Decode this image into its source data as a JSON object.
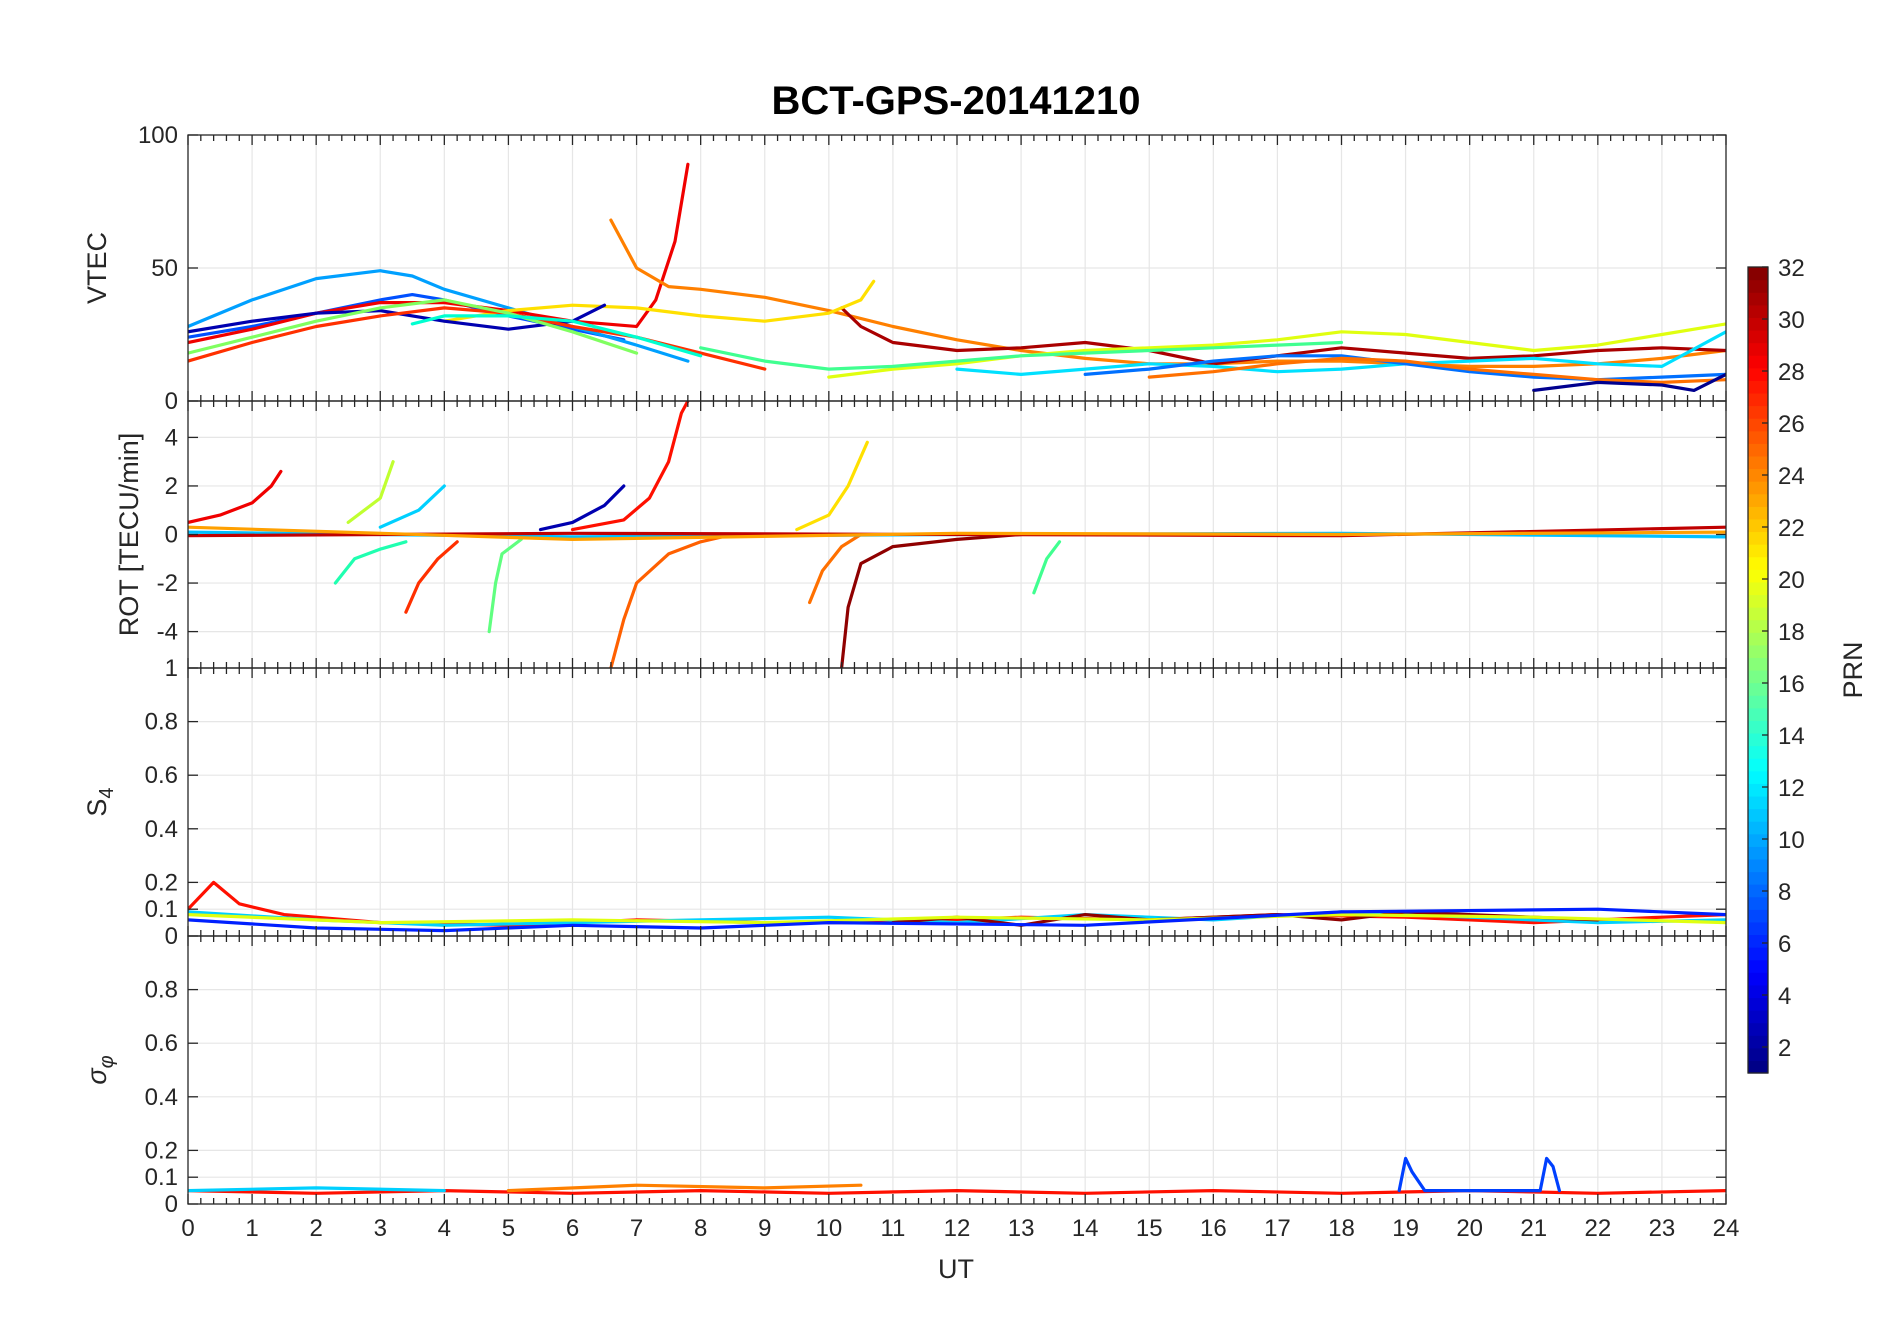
{
  "chart_data": {
    "type": "line",
    "title": "BCT-GPS-20141210",
    "xlabel": "UT",
    "xlim": [
      0,
      24
    ],
    "xticks": [
      "0",
      "1",
      "2",
      "3",
      "4",
      "5",
      "6",
      "7",
      "8",
      "9",
      "10",
      "11",
      "12",
      "13",
      "14",
      "15",
      "16",
      "17",
      "18",
      "19",
      "20",
      "21",
      "22",
      "23",
      "24"
    ],
    "colorbar": {
      "label": "PRN",
      "range": [
        1,
        32
      ],
      "ticks": [
        "2",
        "4",
        "6",
        "8",
        "10",
        "12",
        "14",
        "16",
        "18",
        "20",
        "22",
        "24",
        "26",
        "28",
        "30",
        "32"
      ],
      "colormap": "jet"
    },
    "panels": [
      {
        "id": "vtec",
        "ylabel": "VTEC",
        "ylim": [
          0,
          100
        ],
        "yticks": [
          "0",
          "50",
          "100"
        ],
        "series": [
          {
            "prn": 5,
            "color": "#0050ff",
            "x": [
              0,
              1,
              2,
              3,
              3.5,
              4,
              5,
              6,
              6.8
            ],
            "y": [
              24,
              28,
              33,
              38,
              40,
              38,
              32,
              27,
              23
            ]
          },
          {
            "prn": 9,
            "color": "#00a0ff",
            "x": [
              0,
              1,
              2,
              3,
              3.5,
              4,
              5,
              6,
              7,
              7.8
            ],
            "y": [
              28,
              38,
              46,
              49,
              47,
              42,
              35,
              28,
              21,
              15
            ]
          },
          {
            "prn": 29,
            "color": "#f00000",
            "x": [
              0,
              1,
              2,
              3,
              4,
              5,
              6,
              7,
              7.3,
              7.6,
              7.8
            ],
            "y": [
              22,
              27,
              33,
              37,
              37,
              34,
              30,
              28,
              38,
              60,
              89
            ]
          },
          {
            "prn": 23,
            "color": "#ff8000",
            "x": [
              6.6,
              7,
              7.5,
              8,
              9,
              10,
              11,
              12,
              13,
              14,
              15,
              16,
              17,
              18,
              19,
              20,
              21,
              22,
              23,
              24
            ],
            "y": [
              68,
              50,
              43,
              42,
              39,
              34,
              28,
              23,
              19,
              16,
              14,
              14,
              15,
              15,
              14,
              13,
              13,
              14,
              16,
              19
            ]
          },
          {
            "prn": 31,
            "color": "#aa0000",
            "x": [
              10.2,
              10.5,
              11,
              12,
              13,
              14,
              15,
              16,
              17,
              18,
              19,
              20,
              21,
              22,
              23,
              24
            ],
            "y": [
              35,
              28,
              22,
              19,
              20,
              22,
              19,
              14,
              17,
              20,
              18,
              16,
              17,
              19,
              20,
              19
            ]
          },
          {
            "prn": 19,
            "color": "#e0ff10",
            "x": [
              10,
              11,
              12,
              13,
              14,
              15,
              16,
              17,
              18,
              19,
              20,
              21,
              22,
              23,
              24
            ],
            "y": [
              9,
              12,
              14,
              17,
              19,
              20,
              21,
              23,
              26,
              25,
              22,
              19,
              21,
              25,
              29
            ]
          },
          {
            "prn": 15,
            "color": "#40ff90",
            "x": [
              8,
              9,
              10,
              11,
              12,
              13,
              14,
              15,
              16,
              17,
              18
            ],
            "y": [
              20,
              15,
              12,
              13,
              15,
              17,
              18,
              19,
              20,
              21,
              22
            ]
          },
          {
            "prn": 11,
            "color": "#00e0ff",
            "x": [
              12,
              13,
              14,
              15,
              16,
              17,
              18,
              19,
              20,
              21,
              22,
              23,
              24
            ],
            "y": [
              12,
              10,
              12,
              14,
              13,
              11,
              12,
              14,
              15,
              16,
              14,
              13,
              26
            ]
          },
          {
            "prn": 20,
            "color": "#ffe000",
            "x": [
              4,
              5,
              6,
              7,
              8,
              9,
              10,
              10.5,
              10.7
            ],
            "y": [
              30,
              34,
              36,
              35,
              32,
              30,
              33,
              38,
              45
            ]
          },
          {
            "prn": 7,
            "color": "#0070ff",
            "x": [
              14,
              15,
              16,
              17,
              18,
              19,
              20,
              21,
              22,
              23,
              24
            ],
            "y": [
              10,
              12,
              15,
              17,
              17,
              14,
              11,
              9,
              8,
              9,
              10
            ]
          },
          {
            "prn": 2,
            "color": "#0000b0",
            "x": [
              0,
              1,
              2,
              3,
              4,
              5,
              6,
              6.5
            ],
            "y": [
              26,
              30,
              33,
              34,
              30,
              27,
              30,
              36
            ]
          },
          {
            "prn": 26,
            "color": "#ff3000",
            "x": [
              0,
              1,
              2,
              3,
              4,
              5,
              6,
              7,
              8,
              9
            ],
            "y": [
              15,
              22,
              28,
              32,
              35,
              33,
              28,
              24,
              18,
              12
            ]
          },
          {
            "prn": 17,
            "color": "#80ff60",
            "x": [
              0,
              1,
              2,
              3,
              4,
              5,
              6,
              7
            ],
            "y": [
              18,
              24,
              30,
              35,
              38,
              33,
              26,
              18
            ]
          },
          {
            "prn": 24,
            "color": "#ff7000",
            "x": [
              15,
              16,
              17,
              18,
              19,
              20,
              21,
              22,
              23,
              24
            ],
            "y": [
              9,
              11,
              14,
              16,
              15,
              12,
              10,
              8,
              7,
              8
            ]
          },
          {
            "prn": 13,
            "color": "#00ffd0",
            "x": [
              3.5,
              4,
              5,
              6,
              7,
              8
            ],
            "y": [
              29,
              32,
              32,
              30,
              24,
              17
            ]
          },
          {
            "prn": 1,
            "color": "#00008f",
            "x": [
              21,
              22,
              23,
              23.5,
              24
            ],
            "y": [
              4,
              7,
              6,
              4,
              10
            ]
          }
        ]
      },
      {
        "id": "rot",
        "ylabel": "ROT [TECU/min]",
        "ylim": [
          -5.5,
          5.5
        ],
        "yticks": [
          "-4",
          "-2",
          "0",
          "2",
          "4"
        ],
        "series": [
          {
            "prn": 29,
            "color": "#f00000",
            "x": [
              0,
              0.5,
              1,
              1.3,
              1.45
            ],
            "y": [
              0.5,
              0.8,
              1.3,
              2,
              2.6
            ]
          },
          {
            "prn": 28,
            "color": "#ff1000",
            "x": [
              6,
              6.8,
              7.2,
              7.5,
              7.7,
              7.8
            ],
            "y": [
              0.2,
              0.6,
              1.5,
              3,
              5,
              5.5
            ]
          },
          {
            "prn": 2,
            "color": "#0000b0",
            "x": [
              5.5,
              6,
              6.5,
              6.8
            ],
            "y": [
              0.2,
              0.5,
              1.2,
              2
            ]
          },
          {
            "prn": 18,
            "color": "#c0ff30",
            "x": [
              2.5,
              3,
              3.2
            ],
            "y": [
              0.5,
              1.5,
              3
            ]
          },
          {
            "prn": 12,
            "color": "#00d0ff",
            "x": [
              3,
              3.6,
              4
            ],
            "y": [
              0.3,
              1,
              2
            ]
          },
          {
            "prn": 20,
            "color": "#ffe000",
            "x": [
              9.5,
              10,
              10.3,
              10.6
            ],
            "y": [
              0.2,
              0.8,
              2,
              3.8
            ]
          },
          {
            "prn": 25,
            "color": "#ff6000",
            "x": [
              6.6,
              6.8,
              7,
              7.5,
              8,
              8.5
            ],
            "y": [
              -5.5,
              -3.5,
              -2,
              -0.8,
              -0.3,
              0
            ]
          },
          {
            "prn": 31,
            "color": "#8f0000",
            "x": [
              10.2,
              10.3,
              10.5,
              11,
              12,
              13
            ],
            "y": [
              -5.5,
              -3,
              -1.2,
              -0.5,
              -0.2,
              0
            ]
          },
          {
            "prn": 24,
            "color": "#ff7000",
            "x": [
              9.7,
              9.9,
              10.2,
              10.5
            ],
            "y": [
              -2.8,
              -1.5,
              -0.5,
              0
            ]
          },
          {
            "prn": 26,
            "color": "#ff3000",
            "x": [
              3.4,
              3.6,
              3.9,
              4.2
            ],
            "y": [
              -3.2,
              -2,
              -1,
              -0.3
            ]
          },
          {
            "prn": 16,
            "color": "#60ff80",
            "x": [
              4.7,
              4.8,
              4.9,
              5.2
            ],
            "y": [
              -4,
              -2,
              -0.8,
              -0.2
            ]
          },
          {
            "prn": 14,
            "color": "#20ffb0",
            "x": [
              2.3,
              2.6,
              3,
              3.4
            ],
            "y": [
              -2,
              -1,
              -0.6,
              -0.3
            ]
          },
          {
            "prn": 15,
            "color": "#40ff90",
            "x": [
              13.2,
              13.4,
              13.6
            ],
            "y": [
              -2.4,
              -1,
              -0.3
            ]
          },
          {
            "prn": 10,
            "color": "#00c0ff",
            "x": [
              0,
              6,
              12,
              18,
              24
            ],
            "y": [
              0.1,
              -0.1,
              0,
              0.05,
              -0.1
            ]
          },
          {
            "prn": 30,
            "color": "#c00000",
            "x": [
              0,
              6,
              12,
              18,
              24
            ],
            "y": [
              -0.05,
              0.05,
              0,
              -0.05,
              0.3
            ]
          },
          {
            "prn": 22,
            "color": "#ffa000",
            "x": [
              0,
              6,
              12,
              18,
              24
            ],
            "y": [
              0.3,
              -0.2,
              0.05,
              0,
              0.1
            ]
          }
        ]
      },
      {
        "id": "s4",
        "ylabel": "S4",
        "ylim": [
          0,
          1
        ],
        "yticks": [
          "0",
          "0.1",
          "0.2",
          "0.4",
          "0.6",
          "0.8",
          "1"
        ],
        "series": [
          {
            "prn": 28,
            "color": "#ff1000",
            "x": [
              0,
              0.4,
              0.8,
              1.5,
              3,
              5,
              7,
              9,
              11,
              13,
              15,
              17,
              19,
              21,
              23,
              24
            ],
            "y": [
              0.1,
              0.2,
              0.12,
              0.08,
              0.05,
              0.04,
              0.06,
              0.05,
              0.05,
              0.07,
              0.06,
              0.08,
              0.07,
              0.05,
              0.07,
              0.08
            ]
          },
          {
            "prn": 12,
            "color": "#00d0ff",
            "x": [
              0,
              2,
              4,
              6,
              8,
              10,
              12,
              14,
              16,
              18,
              20,
              22,
              24
            ],
            "y": [
              0.09,
              0.06,
              0.04,
              0.05,
              0.06,
              0.07,
              0.05,
              0.08,
              0.06,
              0.09,
              0.07,
              0.05,
              0.06
            ]
          },
          {
            "prn": 31,
            "color": "#8f0000",
            "x": [
              11,
              12,
              13,
              14,
              15,
              16,
              17,
              18,
              19,
              20,
              21,
              22
            ],
            "y": [
              0.05,
              0.07,
              0.04,
              0.08,
              0.06,
              0.07,
              0.08,
              0.06,
              0.09,
              0.08,
              0.07,
              0.06
            ]
          },
          {
            "prn": 19,
            "color": "#e0ff10",
            "x": [
              0,
              3,
              6,
              9,
              12,
              15,
              18,
              21,
              24
            ],
            "y": [
              0.08,
              0.05,
              0.06,
              0.05,
              0.07,
              0.06,
              0.08,
              0.07,
              0.05
            ]
          },
          {
            "prn": 4,
            "color": "#0020ff",
            "x": [
              0,
              2,
              4,
              6,
              8,
              10,
              14,
              18,
              22,
              24
            ],
            "y": [
              0.06,
              0.03,
              0.02,
              0.04,
              0.03,
              0.05,
              0.04,
              0.09,
              0.1,
              0.08
            ]
          }
        ]
      },
      {
        "id": "sigma_phi",
        "ylabel": "σφ",
        "ylim": [
          0,
          1
        ],
        "yticks": [
          "0",
          "0.1",
          "0.2",
          "0.4",
          "0.6",
          "0.8"
        ],
        "series": [
          {
            "prn": 28,
            "color": "#ff1000",
            "x": [
              0,
              2,
              4,
              6,
              8,
              10,
              12,
              14,
              16,
              18,
              20,
              22,
              24
            ],
            "y": [
              0.05,
              0.04,
              0.05,
              0.04,
              0.05,
              0.04,
              0.05,
              0.04,
              0.05,
              0.04,
              0.05,
              0.04,
              0.05
            ]
          },
          {
            "prn": 23,
            "color": "#ff8000",
            "x": [
              5,
              7,
              9,
              10.5
            ],
            "y": [
              0.05,
              0.07,
              0.06,
              0.07
            ]
          },
          {
            "prn": 12,
            "color": "#00d0ff",
            "x": [
              0,
              2,
              4
            ],
            "y": [
              0.05,
              0.06,
              0.05
            ]
          },
          {
            "prn": 5,
            "color": "#0040ff",
            "x": [
              18.9,
              19,
              19.1,
              19.3,
              21.1,
              21.2,
              21.3,
              21.4
            ],
            "y": [
              0.05,
              0.17,
              0.12,
              0.05,
              0.05,
              0.17,
              0.14,
              0.05
            ]
          }
        ]
      }
    ]
  }
}
